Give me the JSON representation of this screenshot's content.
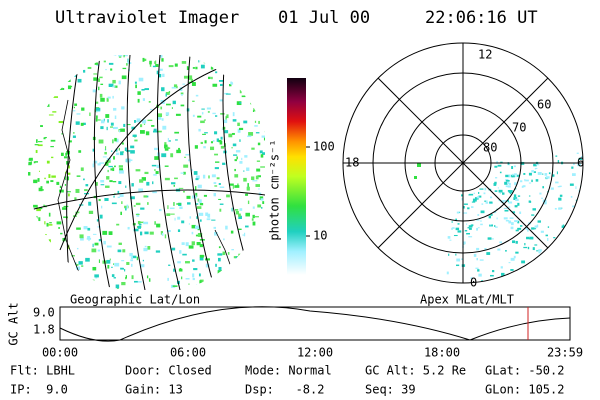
{
  "header": {
    "instrument": "Ultraviolet Imager",
    "date": "01 Jul 00",
    "time": "22:06:16 UT"
  },
  "colorbar": {
    "label": "photon cm⁻²s⁻¹",
    "ticks": [
      "100",
      "10"
    ]
  },
  "polar": {
    "mlt_labels": [
      "12",
      "18",
      "6",
      "0"
    ],
    "mlat_labels": [
      "60",
      "70",
      "80"
    ]
  },
  "panel_labels": {
    "left": "Geographic Lat/Lon",
    "right": "Apex MLat/MLT"
  },
  "timeline": {
    "axis_label": "GC Alt",
    "yticks": [
      "9.0",
      "1.8"
    ],
    "xticks": [
      "00:00",
      "06:00",
      "12:00",
      "18:00",
      "23:59"
    ]
  },
  "info": {
    "rows": [
      [
        "Flt: LBHL",
        "Door: Closed",
        "Mode: Normal",
        "GC Alt: 5.2 Re",
        "GLat: -50.2"
      ],
      [
        "IP:  9.0",
        "Gain: 13",
        "Dsp:   -8.2",
        "Seq: 39",
        "GLon: 105.2"
      ]
    ]
  }
}
